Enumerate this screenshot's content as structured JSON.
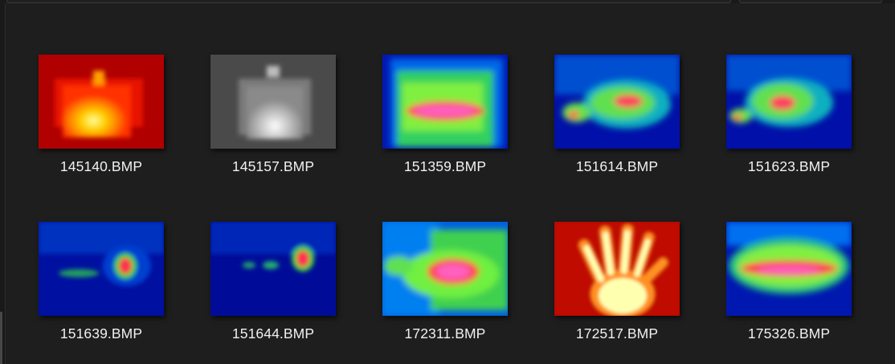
{
  "files": [
    {
      "name": "145140.BMP",
      "palette": "iron",
      "icon": "thermal-image-icon"
    },
    {
      "name": "145157.BMP",
      "palette": "gray",
      "icon": "thermal-image-icon"
    },
    {
      "name": "151359.BMP",
      "palette": "rainbow",
      "icon": "thermal-image-icon"
    },
    {
      "name": "151614.BMP",
      "palette": "rainbow",
      "icon": "thermal-image-icon"
    },
    {
      "name": "151623.BMP",
      "palette": "rainbow",
      "icon": "thermal-image-icon"
    },
    {
      "name": "151639.BMP",
      "palette": "rainbow",
      "icon": "thermal-image-icon"
    },
    {
      "name": "151644.BMP",
      "palette": "rainbow",
      "icon": "thermal-image-icon"
    },
    {
      "name": "172311.BMP",
      "palette": "rainbow",
      "icon": "thermal-image-icon"
    },
    {
      "name": "172517.BMP",
      "palette": "iron",
      "icon": "thermal-hand-image-icon"
    },
    {
      "name": "175326.BMP",
      "palette": "rainbow",
      "icon": "thermal-image-icon"
    }
  ],
  "colors": {
    "background": "#1e1e1e",
    "label_text": "#f0f0f0"
  }
}
